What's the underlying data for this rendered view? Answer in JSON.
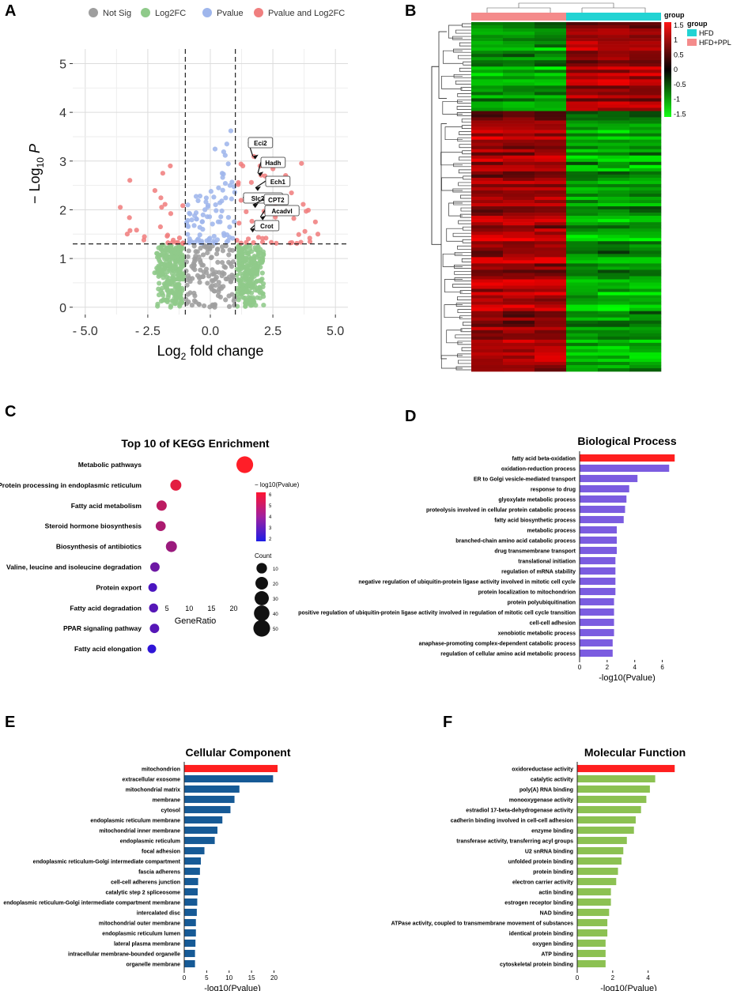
{
  "panels": [
    "A",
    "B",
    "C",
    "D",
    "E",
    "F"
  ],
  "colors": {
    "not_sig": "#9e9e9e",
    "log2fc": "#8fca8a",
    "pvalue": "#9fb6ec",
    "pvalue_and_log2fc": "#f07f7f",
    "bp_top": "#ff1f1f",
    "bp_bar": "#7b5ce0",
    "cc_top": "#ff1f1f",
    "cc_bar": "#165a96",
    "mf_top": "#ff1f1f",
    "mf_bar": "#8cc152",
    "group_hfd": "#22d3d3",
    "group_hfd_ppl": "#f48b8b"
  },
  "chart_data": [
    {
      "panel": "A",
      "type": "scatter",
      "title": "",
      "xlabel_main": "Log",
      "xlabel_sub": "2",
      "xlabel_rest": " fold change",
      "ylabel_main": "− Log",
      "ylabel_sub": "10",
      "ylabel_rest": " P",
      "xlim": [
        -5.5,
        5.5
      ],
      "ylim": [
        -0.15,
        5.3
      ],
      "xticks": [
        "- 5.0",
        "- 2.5",
        "0.0",
        "2.5",
        "5.0"
      ],
      "xtick_values": [
        -5.0,
        -2.5,
        0.0,
        2.5,
        5.0
      ],
      "yticks": [
        "0",
        "1",
        "2",
        "3",
        "4",
        "5"
      ],
      "ytick_values": [
        0,
        1,
        2,
        3,
        4,
        5
      ],
      "thresholds": {
        "fc_left": -1.0,
        "fc_right": 1.0,
        "p_line": 1.3
      },
      "legend": [
        "Not Sig",
        "Log2FC",
        "Pvalue",
        "Pvalue and Log2FC"
      ],
      "labeled_genes": [
        {
          "name": "Eci2",
          "x": 1.7,
          "y": 3.1
        },
        {
          "name": "Hadh",
          "x": 1.9,
          "y": 2.75
        },
        {
          "name": "Ech1",
          "x": 1.8,
          "y": 2.45
        },
        {
          "name": "Slc22a5",
          "x": 1.3,
          "y": 2.25
        },
        {
          "name": "CPT2",
          "x": 1.7,
          "y": 2.1
        },
        {
          "name": "Acadvl",
          "x": 2.0,
          "y": 1.85
        },
        {
          "name": "Crot",
          "x": 1.6,
          "y": 1.6
        }
      ]
    },
    {
      "panel": "B",
      "type": "heatmap",
      "title": "",
      "groups": [
        "HFD",
        "HFD+PPL"
      ],
      "legend_title": "group",
      "colorbar_ticks": [
        "1.5",
        "1",
        "0.5",
        "0",
        "-0.5",
        "-1",
        "-1.5"
      ],
      "colorbar_values": [
        1.5,
        1.0,
        0.5,
        0.0,
        -0.5,
        -1.0,
        -1.5
      ]
    },
    {
      "panel": "C",
      "type": "scatter",
      "title": "Top 10 of KEGG Enrichment",
      "xlabel": "GeneRatio",
      "ylabel": "",
      "xticks": [
        "5",
        "10",
        "15",
        "20"
      ],
      "xtick_values": [
        5,
        10,
        15,
        20
      ],
      "xlim": [
        0,
        24
      ],
      "categories": [
        "Metabolic pathways",
        "Protein processing in endoplasmic reticulum",
        "Fatty acid metabolism",
        "Steroid hormone biosynthesis",
        "Biosynthesis of antibiotics",
        "Valine, leucine and isoleucine degradation",
        "Protein export",
        "Fatty acid degradation",
        "PPAR signaling pathway",
        "Fatty acid elongation"
      ],
      "gene_ratio": [
        22.5,
        7.0,
        3.8,
        3.6,
        6.0,
        2.3,
        1.8,
        2.0,
        2.2,
        1.6
      ],
      "neg_log10_pvalue": [
        6.0,
        5.5,
        4.8,
        4.5,
        4.2,
        3.4,
        2.8,
        3.0,
        3.0,
        2.3
      ],
      "count": [
        50,
        12,
        9,
        8,
        12,
        6,
        4,
        5,
        6,
        4
      ],
      "color_legend_title": "− log10(Pvalue)",
      "color_ticks": [
        "6",
        "5",
        "4",
        "3",
        "2"
      ],
      "size_legend_title": "Count",
      "size_ticks": [
        "10",
        "20",
        "30",
        "40",
        "50"
      ]
    },
    {
      "panel": "D",
      "type": "bar",
      "title": "Biological Process",
      "xlabel": "-log10(Pvalue)",
      "ylabel": "",
      "xticks": [
        "0",
        "2",
        "4",
        "6"
      ],
      "xtick_values": [
        0,
        2,
        4,
        6
      ],
      "xlim": [
        0,
        7
      ],
      "categories": [
        "fatty acid beta-oxidation",
        "oxidation-reduction process",
        "ER to Golgi vesicle-mediated transport",
        "response to drug",
        "glyoxylate metabolic process",
        "proteolysis involved in cellular protein catabolic process",
        "fatty acid biosynthetic process",
        "metabolic process",
        "branched-chain amino acid catabolic process",
        "drug transmembrane transport",
        "translational initiation",
        "regulation of mRNA stability",
        "negative regulation of ubiquitin-protein ligase activity involved in mitotic cell cycle",
        "protein localization to mitochondrion",
        "protein polyubiquitination",
        "positive regulation of ubiquitin-protein ligase activity involved in regulation of mitotic cell cycle transition",
        "cell-cell adhesion",
        "xenobiotic metabolic process",
        "anaphase-promoting complex-dependent catabolic process",
        "regulation of cellular amino acid metabolic process"
      ],
      "values": [
        6.9,
        6.5,
        4.2,
        3.6,
        3.4,
        3.3,
        3.2,
        2.7,
        2.7,
        2.7,
        2.6,
        2.6,
        2.6,
        2.6,
        2.5,
        2.5,
        2.5,
        2.5,
        2.4,
        2.4
      ]
    },
    {
      "panel": "E",
      "type": "bar",
      "title": "Cellular Component",
      "xlabel": "-log10(Pvalue)",
      "ylabel": "",
      "xticks": [
        "0",
        "5",
        "10",
        "15",
        "20"
      ],
      "xtick_values": [
        0,
        5,
        10,
        15,
        20
      ],
      "xlim": [
        0,
        21.5
      ],
      "categories": [
        "mitochondrion",
        "extracellular exosome",
        "mitochondrial matrix",
        "membrane",
        "cytosol",
        "endoplasmic reticulum membrane",
        "mitochondrial inner membrane",
        "endoplasmic reticulum",
        "focal adhesion",
        "endoplasmic reticulum-Golgi intermediate compartment",
        "fascia adherens",
        "cell-cell adherens junction",
        "catalytic step 2 spliceosome",
        "endoplasmic reticulum-Golgi intermediate compartment membrane",
        "intercalated disc",
        "mitochondrial outer membrane",
        "endoplasmic reticulum lumen",
        "lateral plasma membrane",
        "intracellular membrane-bounded organelle",
        "organelle membrane"
      ],
      "values": [
        20.8,
        19.8,
        12.3,
        11.2,
        10.3,
        8.5,
        7.4,
        6.8,
        4.5,
        3.7,
        3.5,
        3.1,
        3.0,
        2.9,
        2.8,
        2.6,
        2.6,
        2.5,
        2.4,
        2.4
      ]
    },
    {
      "panel": "F",
      "type": "bar",
      "title": "Molecular Function",
      "xlabel": "-log10(Pvalue)",
      "ylabel": "",
      "xticks": [
        "0",
        "2",
        "4"
      ],
      "xtick_values": [
        0,
        2,
        4
      ],
      "xlim": [
        0,
        5.8
      ],
      "categories": [
        "oxidoreductase activity",
        "catalytic activity",
        "poly(A) RNA binding",
        "monooxygenase activity",
        "estradiol 17-beta-dehydrogenase activity",
        "cadherin binding involved in cell-cell adhesion",
        "enzyme binding",
        "transferase activity, transferring acyl groups",
        "U2 snRNA binding",
        "unfolded protein binding",
        "protein binding",
        "electron carrier activity",
        "actin binding",
        "estrogen receptor binding",
        "NAD binding",
        "ATPase activity, coupled to transmembrane movement of substances",
        "identical protein binding",
        "oxygen binding",
        "ATP binding",
        "cytoskeletal protein binding"
      ],
      "values": [
        5.5,
        4.4,
        4.1,
        3.9,
        3.6,
        3.3,
        3.2,
        2.8,
        2.6,
        2.5,
        2.3,
        2.2,
        1.9,
        1.9,
        1.8,
        1.7,
        1.7,
        1.6,
        1.6,
        1.6
      ]
    }
  ]
}
